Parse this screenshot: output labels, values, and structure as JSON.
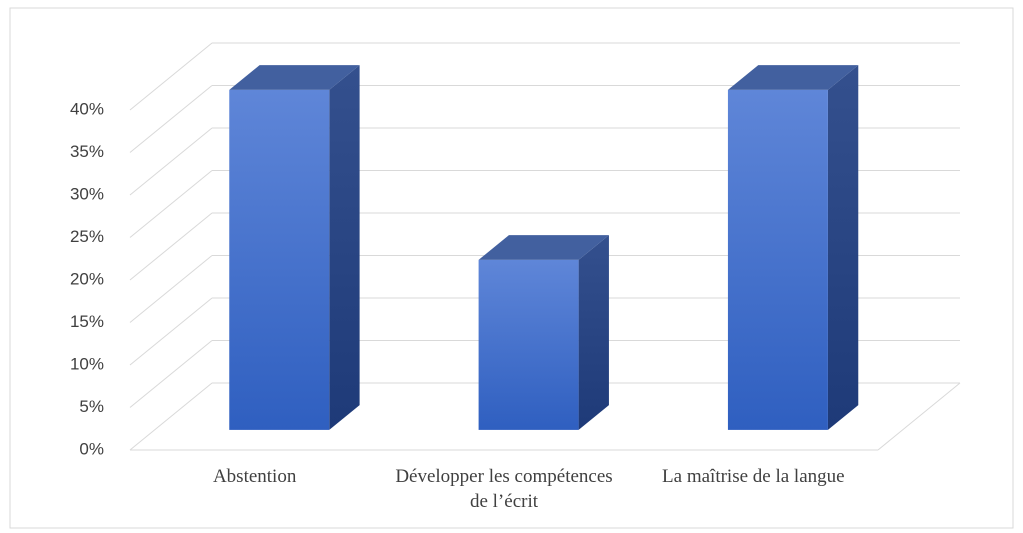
{
  "chart_data": {
    "type": "bar3d",
    "categories": [
      "Abstention",
      "Développer les compétences de l’écrit",
      "La maîtrise de la langue"
    ],
    "values": [
      40,
      20,
      40
    ],
    "color": "#3d6cc9",
    "ylim": [
      0,
      40
    ],
    "yticks": [
      {
        "value": 0,
        "label": "0%"
      },
      {
        "value": 5,
        "label": "5%"
      },
      {
        "value": 10,
        "label": "10%"
      },
      {
        "value": 15,
        "label": "15%"
      },
      {
        "value": 20,
        "label": "20%"
      },
      {
        "value": 25,
        "label": "25%"
      },
      {
        "value": 30,
        "label": "30%"
      },
      {
        "value": 35,
        "label": "35%"
      },
      {
        "value": 40,
        "label": "40%"
      }
    ],
    "grid": true
  }
}
